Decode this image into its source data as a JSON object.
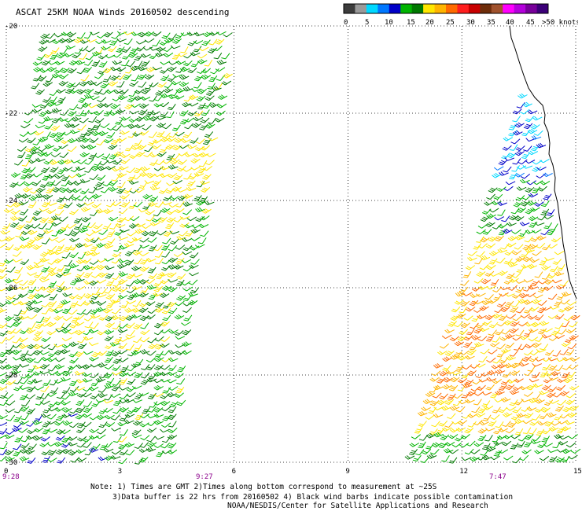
{
  "title": "ASCAT 25KM NOAA Winds 20160502 descending",
  "colorbar": {
    "colors": [
      "#3c3c3c",
      "#9a9a9a",
      "#00d8ff",
      "#0077ff",
      "#0000c8",
      "#00b400",
      "#007800",
      "#ffe600",
      "#ffb400",
      "#ff6a00",
      "#ff1e1e",
      "#c80000",
      "#6e2d0a",
      "#a0522d",
      "#ff00ff",
      "#b400dc",
      "#78009a",
      "#3c0078"
    ],
    "labels": [
      "0",
      "5",
      "10",
      "15",
      "20",
      "25",
      "30",
      "35",
      "40",
      "45",
      ">50 knots"
    ]
  },
  "y_axis": {
    "ticks": [
      "-20",
      "-22",
      "-24",
      "-26",
      "-28",
      "-30"
    ]
  },
  "x_axis": {
    "ticks": [
      "0",
      "3",
      "6",
      "9",
      "12",
      "15"
    ]
  },
  "swath_times": {
    "left_start": "9:28",
    "left_end": "9:27",
    "right": "7:47"
  },
  "notes": {
    "line1": "Note: 1) Times are GMT 2)Times along bottom correspond to measurement at ~25S",
    "line2": "3)Data buffer is 22 hrs from 20160502 4) Black wind barbs indicate possible contamination",
    "line3": "NOAA/NESDIS/Center for Satellite Applications and Research"
  },
  "chart_data": {
    "type": "map",
    "title": "ASCAT 25KM NOAA Winds 20160502 descending",
    "lon_range": [
      0,
      15
    ],
    "lat_range": [
      -30,
      -20
    ],
    "grid": "dotted",
    "legend": "top-right colorbar",
    "wind_speed_units": "knots",
    "swaths": [
      {
        "name": "west swath",
        "time_start": "9:28",
        "time_end": "9:27",
        "dominant_speeds_knots": "15-25"
      },
      {
        "name": "east swath",
        "time": "7:47",
        "dominant_speeds_knots": "20-35"
      }
    ]
  }
}
